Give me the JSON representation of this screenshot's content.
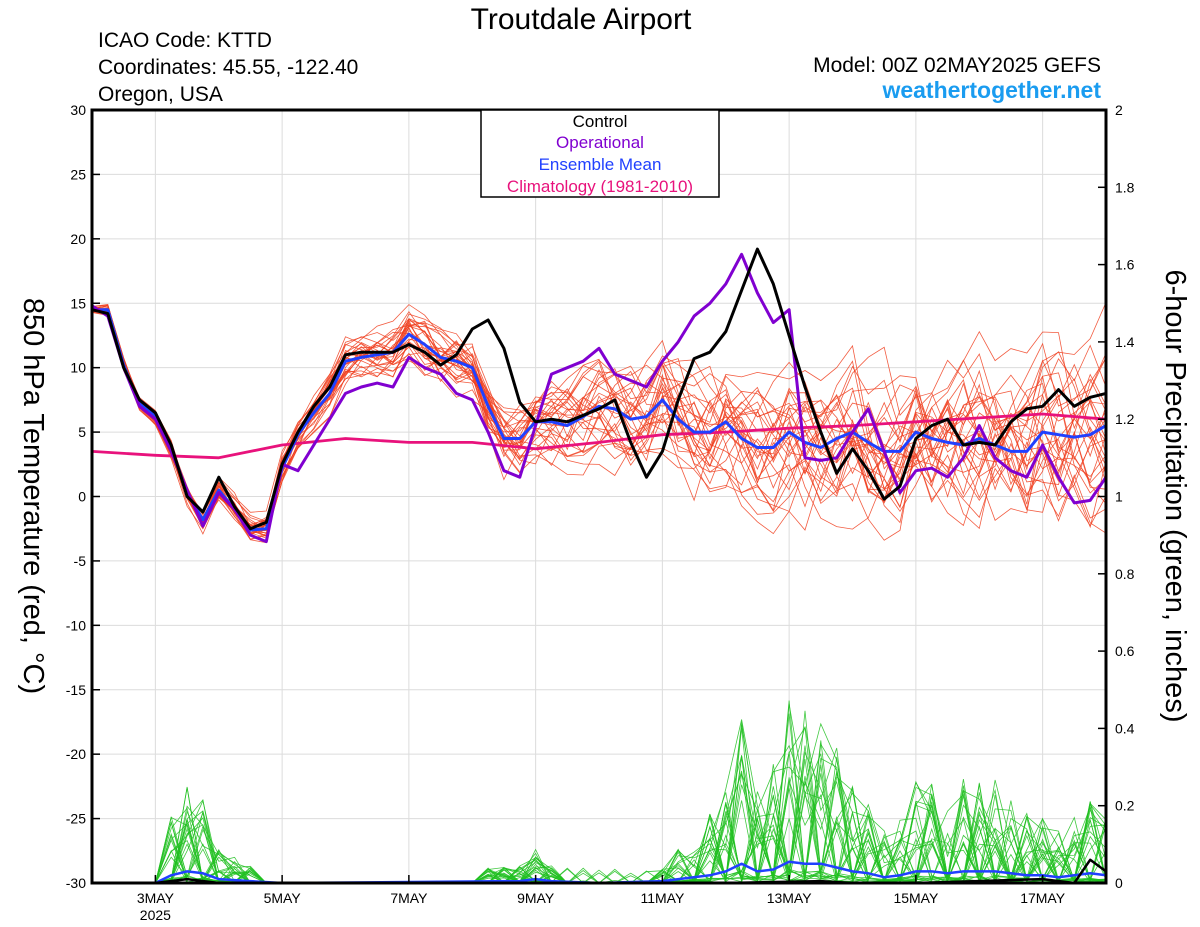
{
  "header": {
    "title": "Troutdale Airport",
    "icao": "ICAO Code: KTTD",
    "coords": "Coordinates: 45.55, -122.40",
    "region": "Oregon, USA",
    "model": "Model: 00Z 02MAY2025 GEFS",
    "site": "weathertogether.net"
  },
  "colors": {
    "control": "#000000",
    "operational": "#8000d0",
    "ensemble_mean": "#2040ff",
    "climatology": "#e8127c",
    "members_temp": "#f04020",
    "members_precip": "#20c020",
    "site": "#1a9cf0"
  },
  "chart_data": {
    "type": "line",
    "xlabel": "",
    "x_ticks": [
      "3MAY",
      "5MAY",
      "7MAY",
      "9MAY",
      "11MAY",
      "13MAY",
      "15MAY",
      "17MAY"
    ],
    "x_tick_days": [
      3,
      5,
      7,
      9,
      11,
      13,
      15,
      17
    ],
    "x_sublabel": "2025",
    "x_range_days": [
      2.0,
      18.0
    ],
    "ylabel_left": "850 hPa Temperature (red, °C)",
    "ylim_left": [
      -30,
      30
    ],
    "y_ticks_left": [
      "30",
      "25",
      "20",
      "15",
      "10",
      "5",
      "0",
      "-5",
      "-10",
      "-15",
      "-20",
      "-25",
      "-30"
    ],
    "ylabel_right": "6-hour Precipitation (green, inches)",
    "ylim_right": [
      0,
      2
    ],
    "y_ticks_right": [
      "2",
      "1.8",
      "1.6",
      "1.4",
      "1.2",
      "1",
      "0.8",
      "0.6",
      "0.4",
      "0.2",
      "0"
    ],
    "grid": true,
    "legend_position": "top-center",
    "legend": [
      "Control",
      "Operational",
      "Ensemble Mean",
      "Climatology (1981-2010)"
    ],
    "temperature": {
      "control": [
        [
          2.0,
          14.5
        ],
        [
          2.25,
          14.2
        ],
        [
          2.5,
          10
        ],
        [
          2.75,
          7.5
        ],
        [
          3.0,
          6.5
        ],
        [
          3.25,
          4
        ],
        [
          3.5,
          0
        ],
        [
          3.75,
          -1.2
        ],
        [
          4.0,
          1.5
        ],
        [
          4.25,
          -0.8
        ],
        [
          4.5,
          -2.5
        ],
        [
          4.75,
          -2
        ],
        [
          5.0,
          2.5
        ],
        [
          5.25,
          5
        ],
        [
          5.5,
          7
        ],
        [
          5.75,
          8.5
        ],
        [
          6.0,
          11
        ],
        [
          6.25,
          11.2
        ],
        [
          6.5,
          11.2
        ],
        [
          6.75,
          11.2
        ],
        [
          7.0,
          11.8
        ],
        [
          7.25,
          11.2
        ],
        [
          7.5,
          10.2
        ],
        [
          7.75,
          11
        ],
        [
          8.0,
          13
        ],
        [
          8.25,
          13.7
        ],
        [
          8.5,
          11.5
        ],
        [
          8.75,
          7.3
        ],
        [
          9.0,
          5.8
        ],
        [
          9.25,
          6
        ],
        [
          9.5,
          5.8
        ],
        [
          9.75,
          6.3
        ],
        [
          10.0,
          6.8
        ],
        [
          10.25,
          7.5
        ],
        [
          10.5,
          4.2
        ],
        [
          10.75,
          1.5
        ],
        [
          11.0,
          3.5
        ],
        [
          11.25,
          7.5
        ],
        [
          11.5,
          10.7
        ],
        [
          11.75,
          11.2
        ],
        [
          12.0,
          12.8
        ],
        [
          12.25,
          16
        ],
        [
          12.5,
          19.2
        ],
        [
          12.75,
          16.5
        ],
        [
          13.0,
          12.5
        ],
        [
          13.25,
          8.5
        ],
        [
          13.5,
          5
        ],
        [
          13.75,
          1.8
        ],
        [
          14.0,
          3.7
        ],
        [
          14.25,
          2
        ],
        [
          14.5,
          -0.2
        ],
        [
          14.75,
          0.8
        ],
        [
          15.0,
          4.5
        ],
        [
          15.25,
          5.5
        ],
        [
          15.5,
          6
        ],
        [
          15.75,
          4
        ],
        [
          16.0,
          4.2
        ],
        [
          16.25,
          4
        ],
        [
          16.5,
          5.8
        ],
        [
          16.75,
          6.8
        ],
        [
          17.0,
          7
        ],
        [
          17.25,
          8.3
        ],
        [
          17.5,
          7
        ],
        [
          17.75,
          7.7
        ],
        [
          18.0,
          8
        ]
      ],
      "operational": [
        [
          2.0,
          14.8
        ],
        [
          2.25,
          14
        ],
        [
          2.5,
          10
        ],
        [
          2.75,
          7
        ],
        [
          3.0,
          6
        ],
        [
          3.25,
          3.5
        ],
        [
          3.5,
          0.5
        ],
        [
          3.75,
          -2.3
        ],
        [
          4.0,
          0.3
        ],
        [
          4.25,
          -1
        ],
        [
          4.5,
          -3
        ],
        [
          4.75,
          -3.5
        ],
        [
          5.0,
          2.5
        ],
        [
          5.25,
          2
        ],
        [
          5.5,
          4
        ],
        [
          5.75,
          6
        ],
        [
          6.0,
          8
        ],
        [
          6.25,
          8.5
        ],
        [
          6.5,
          8.8
        ],
        [
          6.75,
          8.5
        ],
        [
          7.0,
          10.8
        ],
        [
          7.25,
          10
        ],
        [
          7.5,
          9.5
        ],
        [
          7.75,
          8
        ],
        [
          8.0,
          7.5
        ],
        [
          8.25,
          5
        ],
        [
          8.5,
          2
        ],
        [
          8.75,
          1.5
        ],
        [
          9.0,
          5.5
        ],
        [
          9.25,
          9.5
        ],
        [
          9.5,
          10
        ],
        [
          9.75,
          10.5
        ],
        [
          10.0,
          11.5
        ],
        [
          10.25,
          9.5
        ],
        [
          10.5,
          9
        ],
        [
          10.75,
          8.5
        ],
        [
          11.0,
          10.5
        ],
        [
          11.25,
          12
        ],
        [
          11.5,
          14
        ],
        [
          11.75,
          15
        ],
        [
          12.0,
          16.5
        ],
        [
          12.25,
          18.8
        ],
        [
          12.5,
          15.8
        ],
        [
          12.75,
          13.5
        ],
        [
          13.0,
          14.5
        ],
        [
          13.25,
          3
        ],
        [
          13.5,
          2.8
        ],
        [
          13.75,
          3
        ],
        [
          14.0,
          5
        ],
        [
          14.25,
          6.8
        ],
        [
          14.5,
          3.5
        ],
        [
          14.75,
          0.3
        ],
        [
          15.0,
          2
        ],
        [
          15.25,
          2.2
        ],
        [
          15.5,
          1.5
        ],
        [
          15.75,
          3
        ],
        [
          16.0,
          5.5
        ],
        [
          16.25,
          3
        ],
        [
          16.5,
          2
        ],
        [
          16.75,
          1.5
        ],
        [
          17.0,
          4
        ],
        [
          17.25,
          1.5
        ],
        [
          17.5,
          -0.5
        ],
        [
          17.75,
          -0.3
        ],
        [
          18.0,
          1.5
        ]
      ],
      "ensemble_mean": [
        [
          2.0,
          14.5
        ],
        [
          2.25,
          14.5
        ],
        [
          2.5,
          10.2
        ],
        [
          2.75,
          7.2
        ],
        [
          3.0,
          6.2
        ],
        [
          3.25,
          3.8
        ],
        [
          3.5,
          0.3
        ],
        [
          3.75,
          -1.8
        ],
        [
          4.0,
          0.5
        ],
        [
          4.25,
          -1
        ],
        [
          4.5,
          -2.6
        ],
        [
          4.75,
          -2.5
        ],
        [
          5.0,
          2.2
        ],
        [
          5.25,
          4.8
        ],
        [
          5.5,
          6.5
        ],
        [
          5.75,
          8
        ],
        [
          6.0,
          10.5
        ],
        [
          6.25,
          10.8
        ],
        [
          6.5,
          11
        ],
        [
          6.75,
          11.2
        ],
        [
          7.0,
          12.6
        ],
        [
          7.25,
          11.8
        ],
        [
          7.5,
          10.8
        ],
        [
          7.75,
          10.5
        ],
        [
          8.0,
          10
        ],
        [
          8.25,
          7
        ],
        [
          8.5,
          4.5
        ],
        [
          8.75,
          4.5
        ],
        [
          9.0,
          5.8
        ],
        [
          9.25,
          5.8
        ],
        [
          9.5,
          5.5
        ],
        [
          9.75,
          6.2
        ],
        [
          10.0,
          7
        ],
        [
          10.25,
          6.8
        ],
        [
          10.5,
          6
        ],
        [
          10.75,
          6.2
        ],
        [
          11.0,
          7.5
        ],
        [
          11.25,
          6
        ],
        [
          11.5,
          5
        ],
        [
          11.75,
          5
        ],
        [
          12.0,
          5.8
        ],
        [
          12.25,
          4.5
        ],
        [
          12.5,
          3.8
        ],
        [
          12.75,
          3.8
        ],
        [
          13.0,
          5
        ],
        [
          13.25,
          4.2
        ],
        [
          13.5,
          3.8
        ],
        [
          13.75,
          4.5
        ],
        [
          14.0,
          5
        ],
        [
          14.25,
          4.2
        ],
        [
          14.5,
          3.5
        ],
        [
          14.75,
          3.5
        ],
        [
          15.0,
          5
        ],
        [
          15.25,
          4.5
        ],
        [
          15.5,
          4.2
        ],
        [
          15.75,
          4
        ],
        [
          16.0,
          4.5
        ],
        [
          16.25,
          4
        ],
        [
          16.5,
          3.5
        ],
        [
          16.75,
          3.5
        ],
        [
          17.0,
          5
        ],
        [
          17.25,
          4.8
        ],
        [
          17.5,
          4.6
        ],
        [
          17.75,
          4.8
        ],
        [
          18.0,
          5.5
        ]
      ],
      "climatology": [
        [
          2.0,
          3.5
        ],
        [
          3.0,
          3.2
        ],
        [
          4.0,
          3
        ],
        [
          5.0,
          4
        ],
        [
          6.0,
          4.5
        ],
        [
          7.0,
          4.2
        ],
        [
          8.0,
          4.2
        ],
        [
          9.0,
          3.7
        ],
        [
          10.0,
          4.2
        ],
        [
          11.0,
          4.8
        ],
        [
          12.0,
          5
        ],
        [
          13.0,
          5.3
        ],
        [
          14.0,
          5.5
        ],
        [
          15.0,
          5.8
        ],
        [
          16.0,
          6.1
        ],
        [
          17.0,
          6.4
        ],
        [
          18.0,
          6
        ]
      ]
    },
    "precipitation_inches": {
      "control": [
        [
          2.0,
          0
        ],
        [
          3.0,
          0
        ],
        [
          3.5,
          0.01
        ],
        [
          4.0,
          0
        ],
        [
          5.0,
          0
        ],
        [
          9.0,
          0
        ],
        [
          12.0,
          0
        ],
        [
          13.5,
          0.005
        ],
        [
          14.0,
          0
        ],
        [
          15.0,
          0
        ],
        [
          17.0,
          0.01
        ],
        [
          17.5,
          0
        ],
        [
          17.75,
          0.06
        ],
        [
          18.0,
          0.03
        ]
      ],
      "ensemble_mean": [
        [
          2.0,
          0
        ],
        [
          3.0,
          0
        ],
        [
          3.25,
          0.02
        ],
        [
          3.5,
          0.03
        ],
        [
          3.75,
          0.025
        ],
        [
          4.0,
          0.01
        ],
        [
          4.5,
          0.005
        ],
        [
          5.0,
          0
        ],
        [
          8.75,
          0.005
        ],
        [
          9.0,
          0.01
        ],
        [
          9.25,
          0.005
        ],
        [
          10.0,
          0
        ],
        [
          11.0,
          0.005
        ],
        [
          11.75,
          0.02
        ],
        [
          12.0,
          0.03
        ],
        [
          12.25,
          0.05
        ],
        [
          12.5,
          0.03
        ],
        [
          12.75,
          0.035
        ],
        [
          13.0,
          0.055
        ],
        [
          13.25,
          0.05
        ],
        [
          13.5,
          0.05
        ],
        [
          13.75,
          0.04
        ],
        [
          14.0,
          0.03
        ],
        [
          14.25,
          0.025
        ],
        [
          14.5,
          0.015
        ],
        [
          14.75,
          0.02
        ],
        [
          15.0,
          0.03
        ],
        [
          15.25,
          0.03
        ],
        [
          15.5,
          0.025
        ],
        [
          15.75,
          0.03
        ],
        [
          16.0,
          0.03
        ],
        [
          16.25,
          0.03
        ],
        [
          16.5,
          0.025
        ],
        [
          16.75,
          0.02
        ],
        [
          17.0,
          0.02
        ],
        [
          17.25,
          0.015
        ],
        [
          17.5,
          0.02
        ],
        [
          17.75,
          0.025
        ],
        [
          18.0,
          0.02
        ]
      ]
    },
    "members_temperature_count": 30,
    "members_precipitation_count": 30
  }
}
